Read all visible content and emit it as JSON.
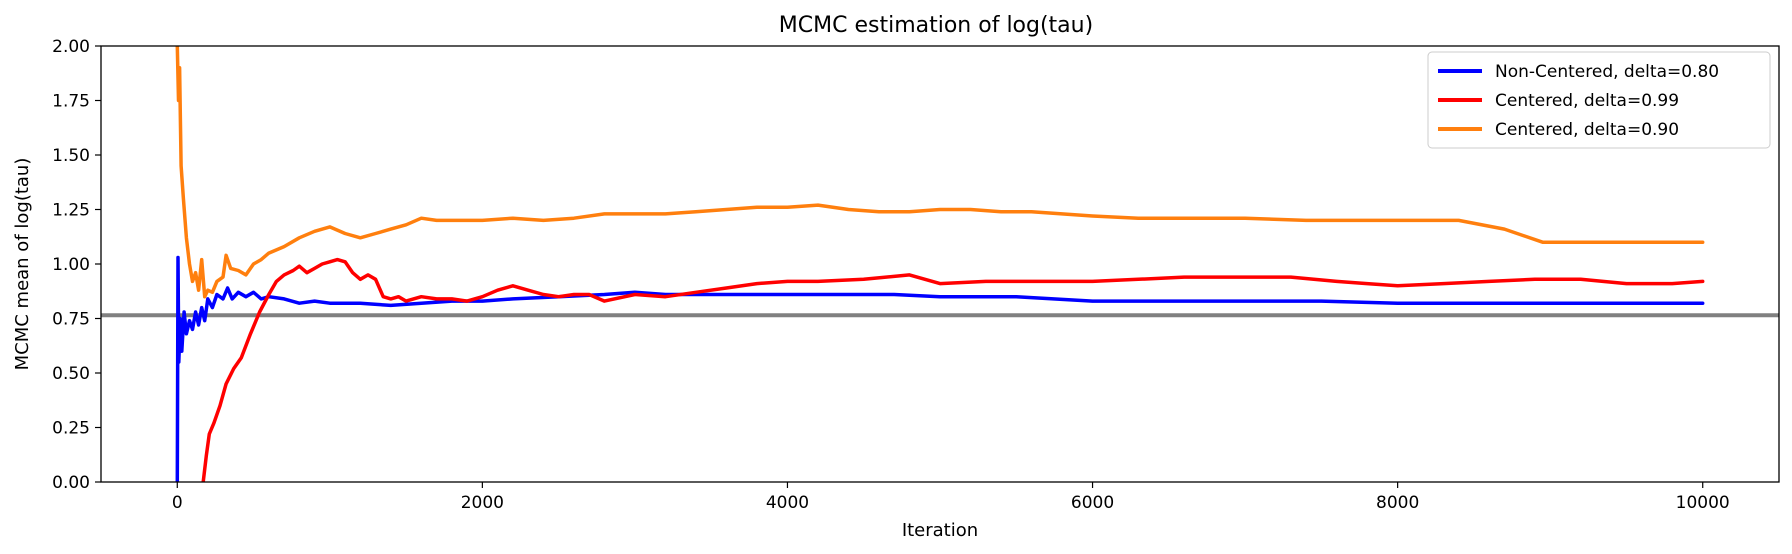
{
  "chart_data": {
    "type": "line",
    "title": "MCMC estimation of log(tau)",
    "xlabel": "Iteration",
    "ylabel": "MCMC mean of log(tau)",
    "xlim": [
      -500,
      10500
    ],
    "ylim": [
      0,
      2.0
    ],
    "xticks": [
      0,
      2000,
      4000,
      6000,
      8000,
      10000
    ],
    "yticks": [
      0.0,
      0.25,
      0.5,
      0.75,
      1.0,
      1.25,
      1.5,
      1.75,
      2.0
    ],
    "ytick_labels": [
      "0.00",
      "0.25",
      "0.50",
      "0.75",
      "1.00",
      "1.25",
      "1.50",
      "1.75",
      "2.00"
    ],
    "xtick_labels": [
      "0",
      "2000",
      "4000",
      "6000",
      "8000",
      "10000"
    ],
    "grid": false,
    "legend_position": "top-right",
    "reference_line": {
      "y": 0.765,
      "color": "#808080"
    },
    "series": [
      {
        "name": "Non-Centered, delta=0.80",
        "color": "#0000ff",
        "points": [
          [
            0,
            0.0
          ],
          [
            5,
            1.03
          ],
          [
            10,
            0.55
          ],
          [
            20,
            0.75
          ],
          [
            30,
            0.6
          ],
          [
            45,
            0.78
          ],
          [
            60,
            0.68
          ],
          [
            80,
            0.74
          ],
          [
            100,
            0.7
          ],
          [
            120,
            0.78
          ],
          [
            140,
            0.72
          ],
          [
            160,
            0.8
          ],
          [
            180,
            0.74
          ],
          [
            200,
            0.84
          ],
          [
            230,
            0.8
          ],
          [
            260,
            0.86
          ],
          [
            300,
            0.84
          ],
          [
            330,
            0.89
          ],
          [
            360,
            0.84
          ],
          [
            400,
            0.87
          ],
          [
            450,
            0.85
          ],
          [
            500,
            0.87
          ],
          [
            550,
            0.84
          ],
          [
            600,
            0.85
          ],
          [
            700,
            0.84
          ],
          [
            800,
            0.82
          ],
          [
            900,
            0.83
          ],
          [
            1000,
            0.82
          ],
          [
            1200,
            0.82
          ],
          [
            1400,
            0.81
          ],
          [
            1600,
            0.82
          ],
          [
            1800,
            0.83
          ],
          [
            2000,
            0.83
          ],
          [
            2200,
            0.84
          ],
          [
            2500,
            0.85
          ],
          [
            2800,
            0.86
          ],
          [
            3000,
            0.87
          ],
          [
            3200,
            0.86
          ],
          [
            3500,
            0.86
          ],
          [
            3800,
            0.86
          ],
          [
            4000,
            0.86
          ],
          [
            4300,
            0.86
          ],
          [
            4700,
            0.86
          ],
          [
            5000,
            0.85
          ],
          [
            5500,
            0.85
          ],
          [
            6000,
            0.83
          ],
          [
            6500,
            0.83
          ],
          [
            7000,
            0.83
          ],
          [
            7500,
            0.83
          ],
          [
            8000,
            0.82
          ],
          [
            8500,
            0.82
          ],
          [
            9000,
            0.82
          ],
          [
            9500,
            0.82
          ],
          [
            10000,
            0.82
          ]
        ]
      },
      {
        "name": "Centered, delta=0.99",
        "color": "#ff0000",
        "points": [
          [
            170,
            0.0
          ],
          [
            190,
            0.12
          ],
          [
            210,
            0.22
          ],
          [
            240,
            0.27
          ],
          [
            280,
            0.35
          ],
          [
            320,
            0.45
          ],
          [
            370,
            0.52
          ],
          [
            420,
            0.57
          ],
          [
            480,
            0.68
          ],
          [
            540,
            0.78
          ],
          [
            600,
            0.86
          ],
          [
            650,
            0.92
          ],
          [
            700,
            0.95
          ],
          [
            760,
            0.97
          ],
          [
            800,
            0.99
          ],
          [
            850,
            0.96
          ],
          [
            900,
            0.98
          ],
          [
            950,
            1.0
          ],
          [
            1000,
            1.01
          ],
          [
            1050,
            1.02
          ],
          [
            1100,
            1.01
          ],
          [
            1150,
            0.96
          ],
          [
            1200,
            0.93
          ],
          [
            1250,
            0.95
          ],
          [
            1300,
            0.93
          ],
          [
            1350,
            0.85
          ],
          [
            1400,
            0.84
          ],
          [
            1450,
            0.85
          ],
          [
            1500,
            0.83
          ],
          [
            1600,
            0.85
          ],
          [
            1700,
            0.84
          ],
          [
            1800,
            0.84
          ],
          [
            1900,
            0.83
          ],
          [
            2000,
            0.85
          ],
          [
            2100,
            0.88
          ],
          [
            2200,
            0.9
          ],
          [
            2300,
            0.88
          ],
          [
            2400,
            0.86
          ],
          [
            2500,
            0.85
          ],
          [
            2600,
            0.86
          ],
          [
            2700,
            0.86
          ],
          [
            2800,
            0.83
          ],
          [
            3000,
            0.86
          ],
          [
            3200,
            0.85
          ],
          [
            3400,
            0.87
          ],
          [
            3600,
            0.89
          ],
          [
            3800,
            0.91
          ],
          [
            4000,
            0.92
          ],
          [
            4200,
            0.92
          ],
          [
            4500,
            0.93
          ],
          [
            4800,
            0.95
          ],
          [
            5000,
            0.91
          ],
          [
            5300,
            0.92
          ],
          [
            5600,
            0.92
          ],
          [
            6000,
            0.92
          ],
          [
            6300,
            0.93
          ],
          [
            6600,
            0.94
          ],
          [
            7000,
            0.94
          ],
          [
            7300,
            0.94
          ],
          [
            7600,
            0.92
          ],
          [
            7800,
            0.91
          ],
          [
            8000,
            0.9
          ],
          [
            8300,
            0.91
          ],
          [
            8600,
            0.92
          ],
          [
            8900,
            0.93
          ],
          [
            9200,
            0.93
          ],
          [
            9500,
            0.91
          ],
          [
            9800,
            0.91
          ],
          [
            10000,
            0.92
          ]
        ]
      },
      {
        "name": "Centered, delta=0.90",
        "color": "#ff7f0e",
        "points": [
          [
            0,
            2.0
          ],
          [
            8,
            1.75
          ],
          [
            15,
            1.9
          ],
          [
            25,
            1.45
          ],
          [
            40,
            1.3
          ],
          [
            60,
            1.12
          ],
          [
            80,
            1.0
          ],
          [
            100,
            0.92
          ],
          [
            120,
            0.96
          ],
          [
            140,
            0.88
          ],
          [
            160,
            1.02
          ],
          [
            180,
            0.85
          ],
          [
            200,
            0.88
          ],
          [
            230,
            0.87
          ],
          [
            260,
            0.92
          ],
          [
            300,
            0.94
          ],
          [
            320,
            1.04
          ],
          [
            350,
            0.98
          ],
          [
            400,
            0.97
          ],
          [
            450,
            0.95
          ],
          [
            500,
            1.0
          ],
          [
            550,
            1.02
          ],
          [
            600,
            1.05
          ],
          [
            700,
            1.08
          ],
          [
            800,
            1.12
          ],
          [
            900,
            1.15
          ],
          [
            1000,
            1.17
          ],
          [
            1100,
            1.14
          ],
          [
            1200,
            1.12
          ],
          [
            1300,
            1.14
          ],
          [
            1400,
            1.16
          ],
          [
            1500,
            1.18
          ],
          [
            1600,
            1.21
          ],
          [
            1700,
            1.2
          ],
          [
            1800,
            1.2
          ],
          [
            2000,
            1.2
          ],
          [
            2200,
            1.21
          ],
          [
            2400,
            1.2
          ],
          [
            2600,
            1.21
          ],
          [
            2800,
            1.23
          ],
          [
            3000,
            1.23
          ],
          [
            3200,
            1.23
          ],
          [
            3400,
            1.24
          ],
          [
            3600,
            1.25
          ],
          [
            3800,
            1.26
          ],
          [
            4000,
            1.26
          ],
          [
            4200,
            1.27
          ],
          [
            4400,
            1.25
          ],
          [
            4600,
            1.24
          ],
          [
            4800,
            1.24
          ],
          [
            5000,
            1.25
          ],
          [
            5200,
            1.25
          ],
          [
            5400,
            1.24
          ],
          [
            5600,
            1.24
          ],
          [
            5800,
            1.23
          ],
          [
            6000,
            1.22
          ],
          [
            6300,
            1.21
          ],
          [
            6600,
            1.21
          ],
          [
            7000,
            1.21
          ],
          [
            7400,
            1.2
          ],
          [
            7800,
            1.2
          ],
          [
            8100,
            1.2
          ],
          [
            8400,
            1.2
          ],
          [
            8700,
            1.16
          ],
          [
            8950,
            1.1
          ],
          [
            9200,
            1.1
          ],
          [
            9500,
            1.1
          ],
          [
            9800,
            1.1
          ],
          [
            10000,
            1.1
          ]
        ]
      }
    ]
  }
}
